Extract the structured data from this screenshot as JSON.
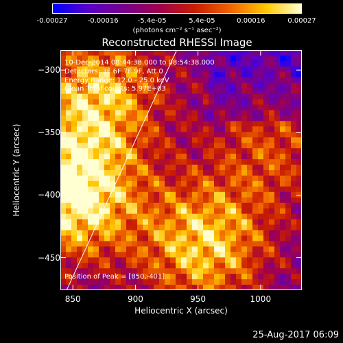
{
  "colorbar": {
    "tick_labels": [
      "-0.00027",
      "-0.00016",
      "-5.4e-05",
      "5.4e-05",
      "0.00016",
      "0.00027"
    ],
    "tick_values": [
      -0.00027,
      -0.00016,
      -5.4e-05,
      5.4e-05,
      0.00016,
      0.00027
    ],
    "range": [
      -0.00027,
      0.00027
    ],
    "units": "(photons cm⁻² s⁻¹ asec⁻²)",
    "colors": [
      "#0000ff",
      "#5a00c8",
      "#78008c",
      "#a00050",
      "#c81e00",
      "#f06400",
      "#ffc800",
      "#ffffd2"
    ]
  },
  "chart_data": {
    "type": "heatmap",
    "title": "Reconstructed RHESSI Image",
    "xlabel": "Heliocentric X (arcsec)",
    "ylabel": "Heliocentric Y (arcsec)",
    "xlim": [
      840,
      1033
    ],
    "ylim": [
      -476,
      -284
    ],
    "x_ticks": [
      850,
      900,
      950,
      1000
    ],
    "y_ticks": [
      -300,
      -350,
      -400,
      -450
    ],
    "limb_line": [
      [
        845,
        -476
      ],
      [
        933,
        -284
      ]
    ],
    "bright_sources": [
      {
        "x": 848,
        "y": -400,
        "level": 1.0
      },
      {
        "x": 870,
        "y": -318,
        "level": 0.75
      },
      {
        "x": 955,
        "y": -440,
        "level": 0.8
      },
      {
        "x": 1010,
        "y": -360,
        "level": 0.45
      }
    ],
    "info_lines": [
      "10-Dec-2014 08:44:38.000 to 08:54:38.000",
      "Detectors: 3F 6F 7F 9F, Att 0",
      "Energy Range: 12.0 - 25.0 keV",
      "Clean     Total counts: 5.97E+03"
    ],
    "peak_label": "Position of Peak = [850,-401]"
  },
  "footer": {
    "timestamp": "25-Aug-2017 06:09"
  }
}
